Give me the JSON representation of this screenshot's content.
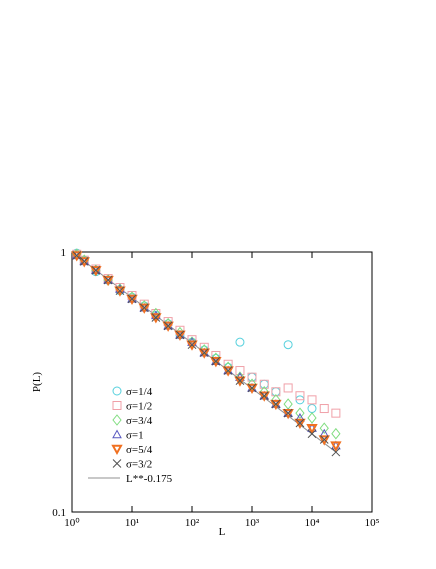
{
  "chart_data": {
    "type": "scatter",
    "xlabel": "L",
    "ylabel": "P(L)",
    "xlog": true,
    "ylog": true,
    "xlim": [
      1,
      100000
    ],
    "ylim": [
      0.1,
      1
    ],
    "xticks": [
      {
        "value": 1,
        "label": "10⁰"
      },
      {
        "value": 10,
        "label": "10¹"
      },
      {
        "value": 100,
        "label": "10²"
      },
      {
        "value": 1000,
        "label": "10³"
      },
      {
        "value": 10000,
        "label": "10⁴"
      },
      {
        "value": 100000,
        "label": "10⁵"
      }
    ],
    "yticks": [
      0.1,
      1
    ],
    "legend": "lower left",
    "x": [
      1.2,
      1.6,
      2.5,
      4,
      6.3,
      10,
      16,
      25,
      40,
      63,
      100,
      160,
      250,
      400,
      630,
      1000,
      1600,
      2500,
      4000,
      6300,
      10000,
      16000,
      25000
    ],
    "series": [
      {
        "name": "σ=1/4",
        "marker": "circle",
        "color": "#55d0dd",
        "values": [
          0.99,
          0.93,
          0.84,
          0.78,
          0.71,
          0.67,
          0.62,
          0.57,
          0.53,
          0.48,
          0.45,
          0.42,
          0.39,
          0.36,
          0.45,
          0.33,
          0.31,
          0.29,
          0.44,
          0.27,
          0.25,
          null,
          null
        ]
      },
      {
        "name": "σ=1/2",
        "marker": "square",
        "color": "#f0a0a8",
        "values": [
          0.98,
          0.93,
          0.86,
          0.79,
          0.73,
          0.68,
          0.63,
          0.58,
          0.54,
          0.5,
          0.46,
          0.43,
          0.4,
          0.37,
          0.35,
          0.33,
          0.31,
          0.29,
          0.3,
          0.28,
          0.27,
          0.25,
          0.24
        ]
      },
      {
        "name": "σ=3/4",
        "marker": "diamond",
        "color": "#80dd80",
        "values": [
          0.98,
          0.93,
          0.85,
          0.78,
          0.72,
          0.67,
          0.62,
          0.58,
          0.53,
          0.49,
          0.45,
          0.42,
          0.39,
          0.36,
          0.33,
          0.31,
          0.29,
          0.27,
          0.26,
          0.24,
          0.23,
          0.21,
          0.2
        ]
      },
      {
        "name": "σ=1",
        "marker": "triangle-up",
        "color": "#5858c0",
        "values": [
          0.97,
          0.92,
          0.85,
          0.78,
          0.72,
          0.66,
          0.61,
          0.57,
          0.52,
          0.48,
          0.45,
          0.41,
          0.38,
          0.35,
          0.33,
          0.3,
          0.28,
          0.26,
          0.24,
          0.23,
          0.21,
          0.2,
          0.18
        ]
      },
      {
        "name": "σ=5/4",
        "marker": "triangle-down",
        "color": "#f07020",
        "values": [
          0.97,
          0.92,
          0.85,
          0.78,
          0.71,
          0.66,
          0.61,
          0.56,
          0.52,
          0.48,
          0.44,
          0.41,
          0.38,
          0.35,
          0.32,
          0.3,
          0.28,
          0.26,
          0.24,
          0.22,
          0.21,
          0.19,
          0.18
        ]
      },
      {
        "name": "σ=3/2",
        "marker": "cross",
        "color": "#505050",
        "values": [
          0.97,
          0.92,
          0.85,
          0.78,
          0.71,
          0.66,
          0.61,
          0.56,
          0.52,
          0.48,
          0.44,
          0.41,
          0.38,
          0.35,
          0.32,
          0.3,
          0.28,
          0.26,
          0.24,
          0.22,
          0.2,
          0.19,
          0.17
        ]
      }
    ],
    "fit": {
      "name": "L**-0.175",
      "color": "#909090",
      "x": [
        1,
        25000
      ],
      "values": [
        1,
        0.17
      ]
    }
  }
}
